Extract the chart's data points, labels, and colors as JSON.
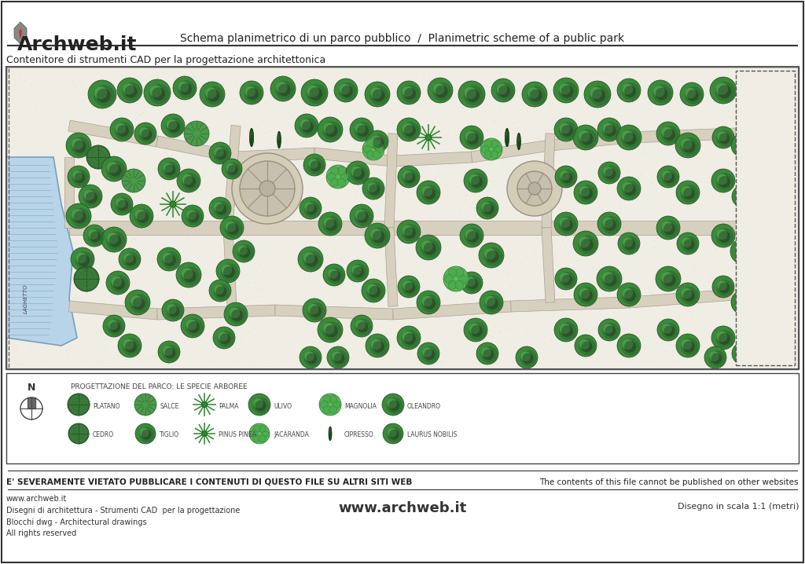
{
  "title_center": "Schema planimetrico di un parco pubblico  /  Planimetric scheme of a public park",
  "subtitle": "Contenitore di strumenti CAD per la progettazione architettonica",
  "brand": "Archweb.it",
  "footer_left_lines": [
    "www.archweb.it",
    "Disegni di architettura - Strumenti CAD  per la progettazione",
    "Blocchi dwg - Architectural drawings",
    "All rights reserved"
  ],
  "footer_center": "www.archweb.it",
  "footer_right": "Disegno in scala 1:1 (metri)",
  "warning_left": "E' SEVERAMENTE VIETATO PUBBLICARE I CONTENUTI DI QUESTO FILE SU ALTRI SITI WEB",
  "warning_right": "The contents of this file cannot be published on other websites",
  "legend_title": "PROGETTAZIONE DEL PARCO: LE SPECIE ARBOREE",
  "legend_row1": [
    "PLATANO",
    "SALCE",
    "PALMA",
    "ULIVO",
    "MAGNOLIA",
    "OLEANDRO"
  ],
  "legend_row2": [
    "CEDRO",
    "TIGLIO",
    "PINUS PINEA",
    "JACARANDA",
    "CIPRESSO",
    "LAURUS NOBILIS"
  ],
  "bg_color": "#ffffff",
  "park_bg": "#f5f5f0",
  "grass_color": "#e8ede0",
  "path_color": "#d9d4c8",
  "tree_green_light": "#4a9e4a",
  "tree_green_dark": "#2d6e2d",
  "tree_dark_top": "#3a3a3a",
  "water_color": "#c8dce8",
  "border_color": "#333333",
  "red_accent": "#c0392b",
  "text_color": "#222222",
  "main_border": "#222222"
}
